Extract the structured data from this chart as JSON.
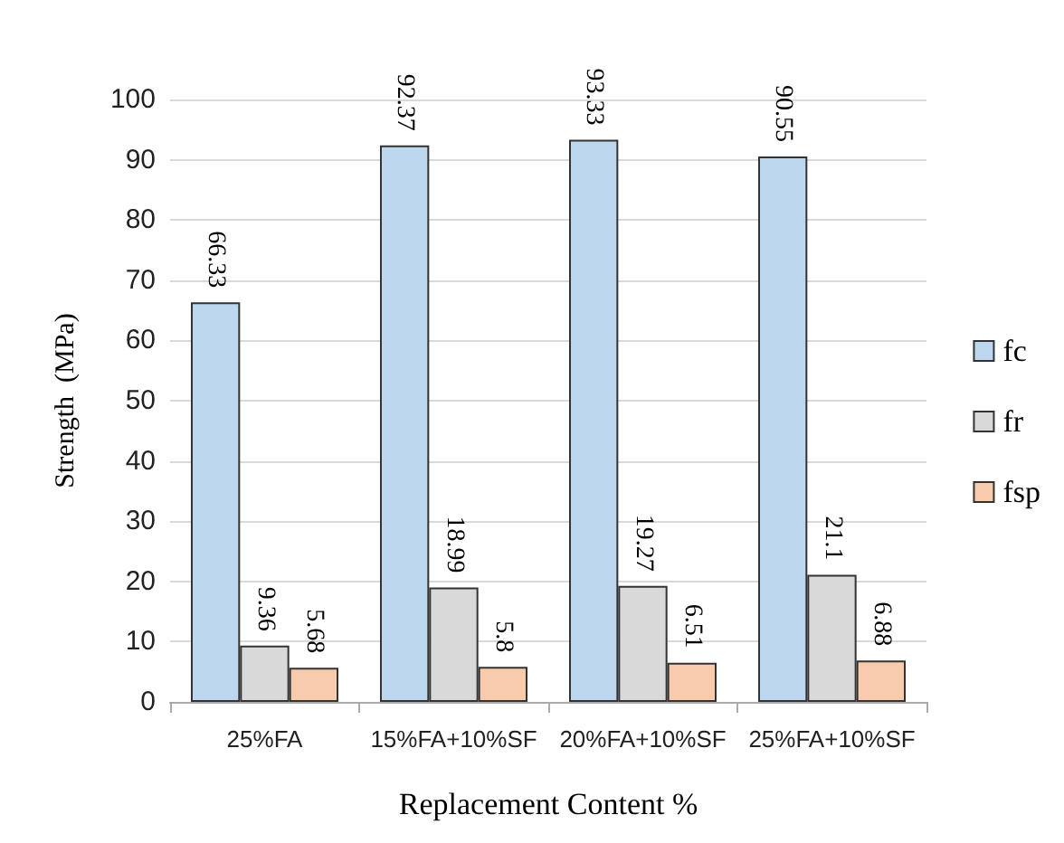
{
  "chart_data": {
    "type": "bar",
    "xlabel": "Replacement Content %",
    "ylabel": "Strength  (MPa)",
    "categories": [
      "25%FA",
      "15%FA+10%SF",
      "20%FA+10%SF",
      "25%FA+10%SF"
    ],
    "series": [
      {
        "name": "fc",
        "color": "#bdd7ee",
        "values": [
          66.33,
          92.37,
          93.33,
          90.55
        ]
      },
      {
        "name": "fr",
        "color": "#d9d9d9",
        "values": [
          9.36,
          18.99,
          19.27,
          21.1
        ]
      },
      {
        "name": "fsp",
        "color": "#f8cbad",
        "values": [
          5.68,
          5.8,
          6.51,
          6.88
        ]
      }
    ],
    "ylim": [
      0,
      100
    ],
    "yticks": [
      0,
      10,
      20,
      30,
      40,
      50,
      60,
      70,
      80,
      90,
      100
    ],
    "grid": "y",
    "legend": "right",
    "data_labels": true
  }
}
